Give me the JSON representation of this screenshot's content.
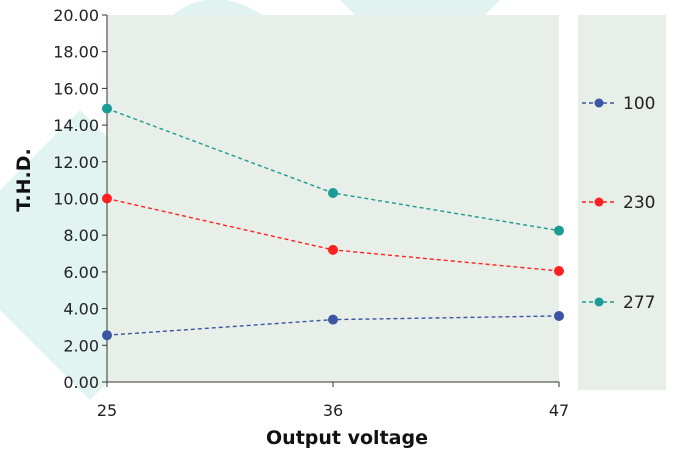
{
  "chart_data": {
    "type": "line",
    "xlabel": "Output voltage",
    "ylabel": "T.H.D.",
    "categories": [
      "25",
      "36",
      "47"
    ],
    "ylim": [
      0,
      20
    ],
    "yticks": [
      "0.00",
      "2.00",
      "4.00",
      "6.00",
      "8.00",
      "10.00",
      "12.00",
      "14.00",
      "16.00",
      "18.00",
      "20.00"
    ],
    "series": [
      {
        "name": "100",
        "color": "#3b55a3",
        "values": [
          2.55,
          3.4,
          3.6
        ]
      },
      {
        "name": "230",
        "color": "#ff2020",
        "values": [
          10.0,
          7.2,
          6.05
        ]
      },
      {
        "name": "277",
        "color": "#1a9c94",
        "values": [
          14.9,
          10.3,
          8.25
        ]
      }
    ],
    "grid": false,
    "legend_position": "right",
    "line_style": "dashed with circle markers",
    "background_color": "#e8efe9"
  }
}
